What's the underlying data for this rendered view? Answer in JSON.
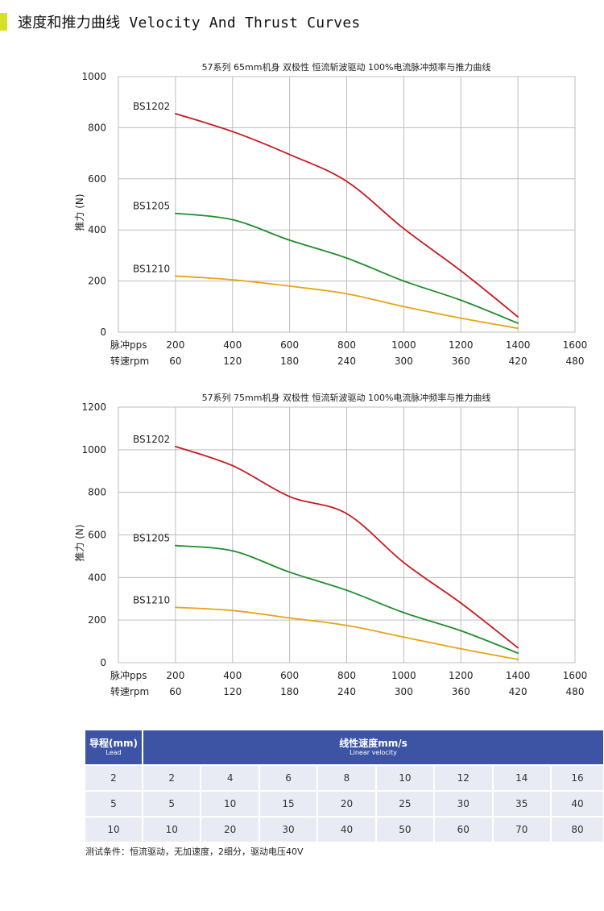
{
  "header": {
    "title": "速度和推力曲线 Velocity And Thrust Curves"
  },
  "chart_data": [
    {
      "type": "line",
      "title": "57系列 65mm机身 双极性 恒流斩波驱动 100%电流脉冲频率与推力曲线",
      "ylabel": "推力 (N)",
      "ylim": [
        0,
        1000
      ],
      "yticks": [
        0,
        200,
        400,
        600,
        800,
        1000
      ],
      "xlim": [
        0,
        1600
      ],
      "x_axis_label": "脉冲pps",
      "x_ticks": [
        200,
        400,
        600,
        800,
        1000,
        1200,
        1400,
        1600
      ],
      "secondary_axis_label": "转速rpm",
      "secondary_ticks": [
        60,
        120,
        180,
        240,
        300,
        360,
        420,
        480
      ],
      "grid": true,
      "series": [
        {
          "name": "BS1202",
          "color": "#c8191f",
          "points": [
            [
              200,
              855
            ],
            [
              400,
              785
            ],
            [
              600,
              695
            ],
            [
              800,
              590
            ],
            [
              1000,
              405
            ],
            [
              1200,
              240
            ],
            [
              1400,
              60
            ]
          ]
        },
        {
          "name": "BS1205",
          "color": "#1f8e2e",
          "points": [
            [
              200,
              465
            ],
            [
              400,
              440
            ],
            [
              600,
              360
            ],
            [
              800,
              290
            ],
            [
              1000,
              200
            ],
            [
              1200,
              125
            ],
            [
              1400,
              35
            ]
          ]
        },
        {
          "name": "BS1210",
          "color": "#e8a317",
          "points": [
            [
              200,
              220
            ],
            [
              400,
              205
            ],
            [
              600,
              180
            ],
            [
              800,
              150
            ],
            [
              1000,
              100
            ],
            [
              1200,
              55
            ],
            [
              1400,
              15
            ]
          ]
        }
      ]
    },
    {
      "type": "line",
      "title": "57系列 75mm机身 双极性 恒流斩波驱动 100%电流脉冲频率与推力曲线",
      "ylabel": "推力 (N)",
      "ylim": [
        0,
        1200
      ],
      "yticks": [
        0,
        200,
        400,
        600,
        800,
        1000,
        1200
      ],
      "xlim": [
        0,
        1600
      ],
      "x_axis_label": "脉冲pps",
      "x_ticks": [
        200,
        400,
        600,
        800,
        1000,
        1200,
        1400,
        1600
      ],
      "secondary_axis_label": "转速rpm",
      "secondary_ticks": [
        60,
        120,
        180,
        240,
        300,
        360,
        420,
        480
      ],
      "grid": true,
      "series": [
        {
          "name": "BS1202",
          "color": "#c8191f",
          "points": [
            [
              200,
              1015
            ],
            [
              400,
              925
            ],
            [
              600,
              780
            ],
            [
              800,
              700
            ],
            [
              1000,
              470
            ],
            [
              1200,
              280
            ],
            [
              1400,
              70
            ]
          ]
        },
        {
          "name": "BS1205",
          "color": "#1f8e2e",
          "points": [
            [
              200,
              550
            ],
            [
              400,
              525
            ],
            [
              600,
              425
            ],
            [
              800,
              340
            ],
            [
              1000,
              235
            ],
            [
              1200,
              150
            ],
            [
              1400,
              45
            ]
          ]
        },
        {
          "name": "BS1210",
          "color": "#e8a317",
          "points": [
            [
              200,
              260
            ],
            [
              400,
              245
            ],
            [
              600,
              210
            ],
            [
              800,
              175
            ],
            [
              1000,
              120
            ],
            [
              1200,
              65
            ],
            [
              1400,
              15
            ]
          ]
        }
      ]
    }
  ],
  "table": {
    "lead_header": "导程(mm)",
    "lead_header_sub": "Lead",
    "velocity_header": "线性速度mm/s",
    "velocity_header_sub": "Linear velocity",
    "rows": [
      {
        "lead": "2",
        "values": [
          "2",
          "4",
          "6",
          "8",
          "10",
          "12",
          "14",
          "16"
        ]
      },
      {
        "lead": "5",
        "values": [
          "5",
          "10",
          "15",
          "20",
          "25",
          "30",
          "35",
          "40"
        ]
      },
      {
        "lead": "10",
        "values": [
          "10",
          "20",
          "30",
          "40",
          "50",
          "60",
          "70",
          "80"
        ]
      }
    ]
  },
  "footnote": "测试条件：恒流驱动，无加速度，2细分，驱动电压40V"
}
